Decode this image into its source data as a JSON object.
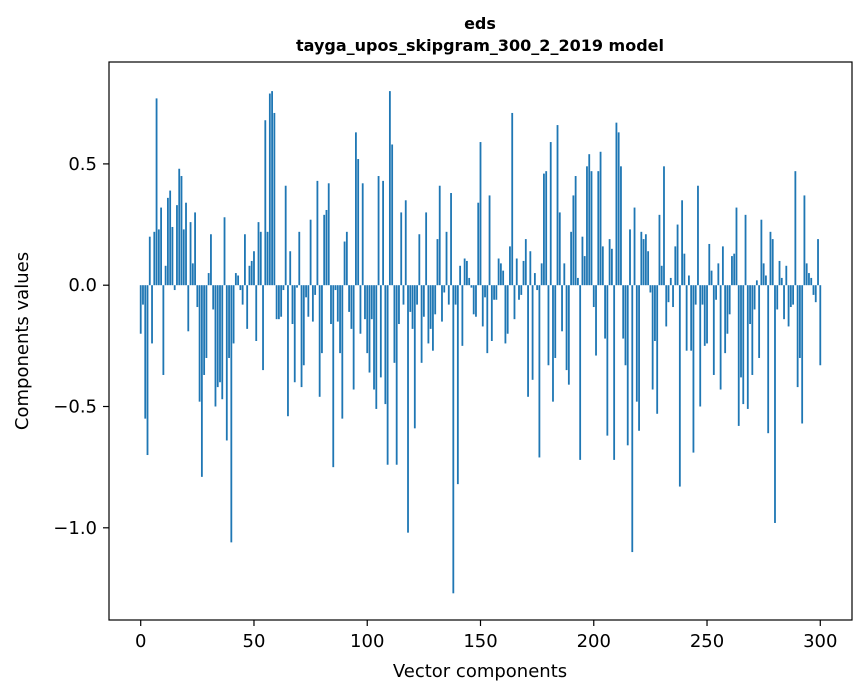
{
  "chart_data": {
    "type": "bar",
    "title": "eds",
    "subtitle": "tayga_upos_skipgram_300_2_2019 model",
    "xlabel": "Vector components",
    "ylabel": "Components values",
    "xlim": [
      -14,
      314
    ],
    "ylim": [
      -1.38,
      0.92
    ],
    "xticks": [
      0,
      50,
      100,
      150,
      200,
      250,
      300
    ],
    "xtick_labels": [
      "0",
      "50",
      "100",
      "150",
      "200",
      "250",
      "300"
    ],
    "yticks": [
      -1.0,
      -0.5,
      0.0,
      0.5
    ],
    "ytick_labels": [
      "−1.0",
      "−0.5",
      "0.0",
      "0.5"
    ],
    "grid": false,
    "bar_color": "#1f77b4",
    "x_start": 0,
    "values": [
      -0.2,
      -0.08,
      -0.55,
      -0.7,
      0.2,
      -0.24,
      0.22,
      0.77,
      0.23,
      0.32,
      -0.37,
      0.08,
      0.36,
      0.39,
      0.24,
      -0.02,
      0.33,
      0.48,
      0.45,
      0.23,
      0.34,
      -0.19,
      0.26,
      0.09,
      0.3,
      -0.09,
      -0.48,
      -0.79,
      -0.37,
      -0.3,
      0.05,
      0.21,
      -0.1,
      -0.5,
      -0.42,
      -0.4,
      -0.47,
      0.28,
      -0.64,
      -0.3,
      -1.06,
      -0.24,
      0.05,
      0.04,
      -0.02,
      -0.08,
      0.21,
      -0.18,
      0.08,
      0.1,
      0.14,
      -0.23,
      0.26,
      0.22,
      -0.35,
      0.68,
      0.22,
      0.79,
      0.8,
      0.71,
      -0.14,
      -0.14,
      -0.13,
      -0.02,
      0.41,
      -0.54,
      0.14,
      -0.16,
      -0.4,
      -0.01,
      0.22,
      -0.42,
      -0.33,
      -0.05,
      -0.13,
      0.27,
      -0.15,
      -0.04,
      0.43,
      -0.46,
      -0.28,
      0.29,
      0.31,
      0.42,
      -0.16,
      -0.75,
      -0.02,
      -0.15,
      -0.28,
      -0.55,
      0.18,
      0.22,
      -0.11,
      -0.18,
      -0.43,
      0.63,
      0.52,
      -0.2,
      0.42,
      -0.14,
      -0.28,
      -0.36,
      -0.14,
      -0.43,
      -0.51,
      0.45,
      -0.38,
      0.43,
      -0.49,
      -0.74,
      0.8,
      0.58,
      -0.32,
      -0.74,
      -0.16,
      0.3,
      -0.08,
      0.35,
      -1.02,
      -0.11,
      -0.18,
      -0.59,
      -0.08,
      0.21,
      -0.32,
      -0.13,
      0.3,
      -0.24,
      -0.18,
      -0.27,
      -0.12,
      0.19,
      0.41,
      -0.15,
      -0.03,
      0.22,
      -0.08,
      0.38,
      -1.27,
      -0.08,
      -0.82,
      0.08,
      -0.25,
      0.11,
      0.1,
      0.03,
      -0.01,
      -0.12,
      -0.13,
      0.34,
      0.59,
      -0.17,
      -0.05,
      -0.28,
      0.37,
      -0.23,
      -0.06,
      -0.06,
      0.11,
      0.09,
      0.06,
      -0.24,
      -0.2,
      0.16,
      0.71,
      -0.14,
      0.11,
      -0.06,
      -0.04,
      0.1,
      0.19,
      -0.46,
      0.14,
      -0.39,
      0.05,
      -0.02,
      -0.71,
      0.09,
      0.46,
      0.47,
      -0.33,
      0.59,
      -0.48,
      -0.3,
      0.66,
      0.3,
      -0.19,
      0.09,
      -0.35,
      -0.41,
      0.22,
      0.37,
      0.45,
      0.03,
      -0.72,
      0.2,
      0.12,
      0.49,
      0.54,
      0.47,
      -0.09,
      -0.29,
      0.47,
      0.55,
      0.16,
      -0.22,
      -0.62,
      0.19,
      0.15,
      -0.72,
      0.67,
      0.63,
      0.49,
      -0.22,
      -0.33,
      -0.66,
      0.23,
      -1.1,
      0.32,
      -0.48,
      -0.6,
      0.22,
      0.19,
      0.21,
      0.14,
      -0.03,
      -0.43,
      -0.23,
      -0.53,
      0.29,
      0.08,
      0.49,
      -0.17,
      -0.07,
      0.03,
      -0.09,
      0.16,
      0.25,
      -0.83,
      0.35,
      0.13,
      -0.27,
      0.04,
      -0.27,
      -0.69,
      -0.08,
      0.41,
      -0.5,
      -0.08,
      -0.25,
      -0.24,
      0.17,
      0.06,
      -0.37,
      -0.06,
      0.09,
      -0.43,
      0.16,
      -0.28,
      -0.2,
      -0.12,
      0.12,
      0.13,
      0.32,
      -0.58,
      -0.38,
      -0.49,
      0.29,
      -0.51,
      -0.16,
      -0.37,
      -0.1,
      0.02,
      -0.3,
      0.27,
      0.09,
      0.04,
      -0.61,
      0.22,
      0.19,
      -0.98,
      -0.1,
      0.1,
      0.03,
      -0.14,
      0.08,
      -0.17,
      -0.09,
      -0.08,
      0.47,
      -0.42,
      -0.3,
      -0.57,
      0.37,
      0.09,
      0.05,
      0.03,
      -0.04,
      -0.07,
      0.19,
      -0.33
    ]
  }
}
